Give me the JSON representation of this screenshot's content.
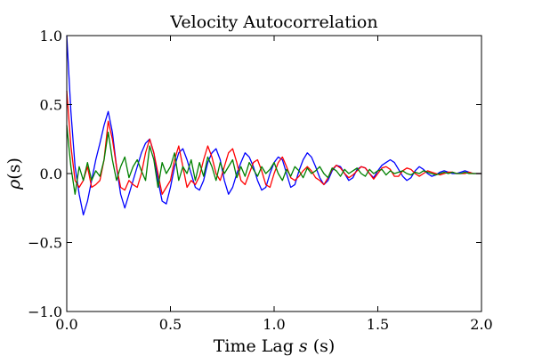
{
  "chart_data": {
    "type": "line",
    "title": "Velocity Autocorrelation",
    "xlabel": {
      "prefix": "Time Lag ",
      "var": "s",
      "suffix": " (s)"
    },
    "ylabel": {
      "var": "ρ",
      "args": "(s)"
    },
    "xlim": [
      0,
      2.0
    ],
    "ylim": [
      -1.0,
      1.0
    ],
    "xticks": [
      0.0,
      0.5,
      1.0,
      1.5,
      2.0
    ],
    "xtick_labels": [
      "0.0",
      "0.5",
      "1.0",
      "1.5",
      "2.0"
    ],
    "yticks": [
      -1.0,
      -0.5,
      0.0,
      0.5,
      1.0
    ],
    "ytick_labels": [
      "−1.0",
      "−0.5",
      "0.0",
      "0.5",
      "1.0"
    ],
    "grid": false,
    "x": [
      0.0,
      0.02,
      0.04,
      0.06,
      0.08,
      0.1,
      0.12,
      0.14,
      0.16,
      0.18,
      0.2,
      0.22,
      0.24,
      0.26,
      0.28,
      0.3,
      0.32,
      0.34,
      0.36,
      0.38,
      0.4,
      0.42,
      0.44,
      0.46,
      0.48,
      0.5,
      0.52,
      0.54,
      0.56,
      0.58,
      0.6,
      0.62,
      0.64,
      0.66,
      0.68,
      0.7,
      0.72,
      0.74,
      0.76,
      0.78,
      0.8,
      0.82,
      0.84,
      0.86,
      0.88,
      0.9,
      0.92,
      0.94,
      0.96,
      0.98,
      1.0,
      1.02,
      1.04,
      1.06,
      1.08,
      1.1,
      1.12,
      1.14,
      1.16,
      1.18,
      1.2,
      1.22,
      1.24,
      1.26,
      1.28,
      1.3,
      1.32,
      1.34,
      1.36,
      1.38,
      1.4,
      1.42,
      1.44,
      1.46,
      1.48,
      1.5,
      1.52,
      1.54,
      1.56,
      1.58,
      1.6,
      1.62,
      1.64,
      1.66,
      1.68,
      1.7,
      1.72,
      1.74,
      1.76,
      1.78,
      1.8,
      1.82,
      1.84,
      1.86,
      1.88,
      1.9,
      1.92,
      1.94,
      1.96,
      1.98,
      2.0
    ],
    "series": [
      {
        "color": "#0000ff",
        "values": [
          1.0,
          0.45,
          0.05,
          -0.15,
          -0.3,
          -0.2,
          -0.05,
          0.1,
          0.22,
          0.35,
          0.45,
          0.3,
          0.05,
          -0.15,
          -0.25,
          -0.15,
          -0.05,
          0.05,
          0.15,
          0.22,
          0.25,
          0.15,
          -0.05,
          -0.2,
          -0.22,
          -0.1,
          0.05,
          0.15,
          0.18,
          0.1,
          0.0,
          -0.1,
          -0.12,
          -0.05,
          0.08,
          0.15,
          0.18,
          0.1,
          -0.05,
          -0.15,
          -0.1,
          0.0,
          0.08,
          0.15,
          0.12,
          0.05,
          -0.05,
          -0.12,
          -0.1,
          0.0,
          0.08,
          0.12,
          0.1,
          0.0,
          -0.1,
          -0.08,
          0.02,
          0.1,
          0.15,
          0.12,
          0.05,
          -0.03,
          -0.08,
          -0.05,
          0.02,
          0.06,
          0.05,
          0.0,
          -0.05,
          -0.03,
          0.03,
          0.05,
          0.04,
          0.0,
          -0.03,
          0.02,
          0.06,
          0.08,
          0.1,
          0.08,
          0.03,
          -0.02,
          -0.05,
          -0.03,
          0.02,
          0.05,
          0.03,
          0.0,
          -0.02,
          -0.01,
          0.01,
          0.02,
          0.01,
          0.0,
          0.0,
          0.01,
          0.02,
          0.01,
          0.0,
          0.0,
          0.0
        ]
      },
      {
        "color": "#ff0000",
        "values": [
          0.6,
          0.2,
          -0.05,
          -0.1,
          -0.05,
          0.05,
          -0.1,
          -0.08,
          -0.05,
          0.1,
          0.38,
          0.25,
          0.05,
          -0.1,
          -0.12,
          -0.05,
          -0.08,
          -0.1,
          0.0,
          0.15,
          0.25,
          0.15,
          0.0,
          -0.15,
          -0.1,
          -0.05,
          0.1,
          0.2,
          0.05,
          -0.1,
          -0.05,
          -0.08,
          -0.02,
          0.1,
          0.2,
          0.12,
          0.0,
          -0.05,
          0.05,
          0.15,
          0.18,
          0.08,
          -0.05,
          -0.08,
          0.0,
          0.08,
          0.1,
          0.02,
          -0.08,
          -0.1,
          0.0,
          0.08,
          0.12,
          0.05,
          -0.03,
          -0.05,
          -0.02,
          0.02,
          0.05,
          0.02,
          -0.03,
          -0.05,
          -0.08,
          -0.03,
          0.03,
          0.06,
          0.04,
          0.0,
          -0.03,
          -0.01,
          0.02,
          0.05,
          0.04,
          0.0,
          -0.04,
          0.0,
          0.04,
          0.05,
          0.03,
          -0.02,
          -0.02,
          0.02,
          0.04,
          0.03,
          0.0,
          -0.02,
          0.0,
          0.02,
          0.01,
          0.0,
          -0.01,
          0.0,
          0.01,
          0.01,
          0.0,
          0.0,
          0.0,
          0.01,
          0.0,
          0.0,
          0.0
        ]
      },
      {
        "color": "#008000",
        "values": [
          0.35,
          0.05,
          -0.15,
          0.05,
          -0.05,
          0.08,
          -0.05,
          0.02,
          -0.02,
          0.1,
          0.3,
          0.1,
          -0.05,
          0.05,
          0.12,
          -0.03,
          0.05,
          0.1,
          0.02,
          -0.05,
          0.2,
          0.1,
          -0.1,
          0.08,
          0.0,
          0.05,
          0.15,
          -0.05,
          0.05,
          0.0,
          0.1,
          -0.05,
          0.08,
          -0.02,
          0.12,
          0.05,
          -0.05,
          0.08,
          0.0,
          0.05,
          0.1,
          -0.03,
          0.05,
          -0.02,
          0.08,
          0.03,
          -0.02,
          0.05,
          0.0,
          0.03,
          0.08,
          0.0,
          -0.05,
          0.03,
          -0.02,
          0.05,
          0.02,
          -0.03,
          0.04,
          0.0,
          0.02,
          0.05,
          0.0,
          -0.03,
          0.04,
          0.02,
          -0.02,
          0.03,
          0.0,
          0.02,
          0.04,
          0.0,
          -0.02,
          0.03,
          0.0,
          0.02,
          0.03,
          -0.01,
          0.02,
          0.0,
          0.01,
          0.02,
          0.0,
          -0.01,
          0.01,
          0.0,
          0.02,
          0.01,
          0.0,
          -0.01,
          0.0,
          0.01,
          0.0,
          0.01,
          0.0,
          0.0,
          0.01,
          0.0,
          0.0,
          0.0,
          0.0
        ]
      }
    ]
  }
}
